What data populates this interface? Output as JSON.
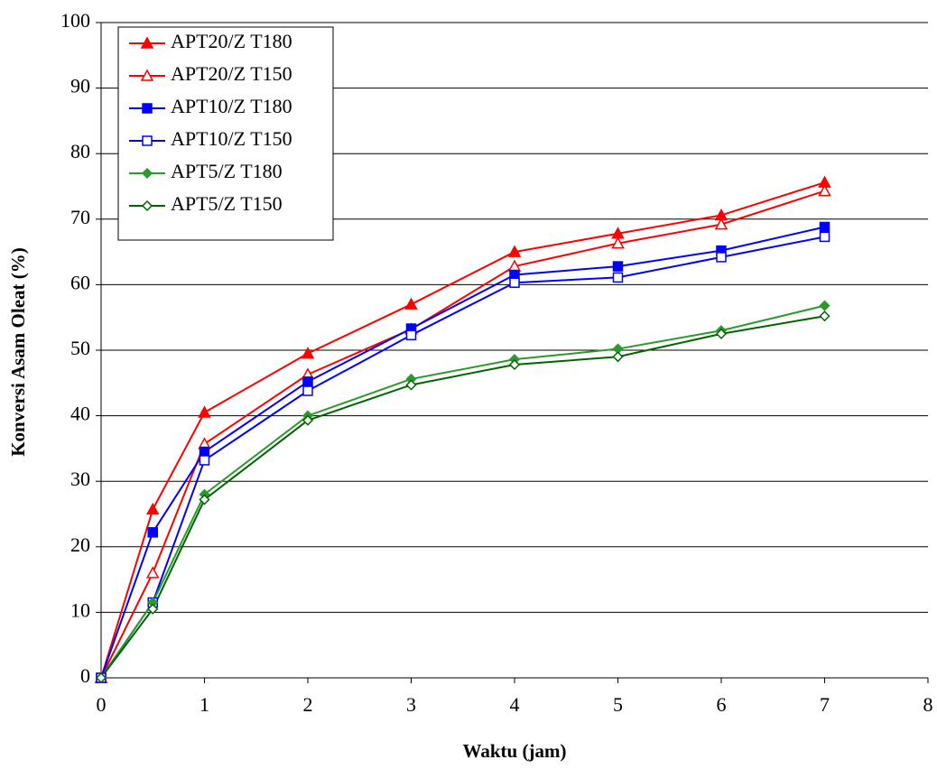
{
  "chart_data": {
    "type": "line",
    "x_label": "Waktu (jam)",
    "y_label": "Konversi Asam Oleat (%)",
    "x": [
      0,
      0.5,
      1,
      2,
      3,
      4,
      5,
      6,
      7
    ],
    "xlim": [
      0,
      8
    ],
    "xticks": [
      0,
      1,
      2,
      3,
      4,
      5,
      6,
      7,
      8
    ],
    "ylim": [
      0,
      100
    ],
    "yticks": [
      0,
      10,
      20,
      30,
      40,
      50,
      60,
      70,
      80,
      90,
      100
    ],
    "grid": true,
    "legend": "top-left",
    "series": [
      {
        "name": "APT20/Z T180",
        "color": "#ff0000",
        "marker": "triangle",
        "filled": true,
        "values": [
          0,
          25.7,
          40.5,
          49.5,
          57,
          65,
          67.8,
          70.6,
          75.6
        ]
      },
      {
        "name": "APT20/Z T150",
        "color": "#ff0000",
        "marker": "triangle",
        "filled": false,
        "values": [
          0,
          16,
          35.7,
          46.3,
          53.2,
          62.8,
          66.3,
          69.2,
          74.3
        ]
      },
      {
        "name": "APT10/Z T180",
        "color": "#0000ff",
        "marker": "square",
        "filled": true,
        "values": [
          0,
          22.2,
          34.5,
          45.2,
          53.3,
          61.5,
          62.8,
          65.2,
          68.8
        ]
      },
      {
        "name": "APT10/Z T150",
        "color": "#0000ff",
        "marker": "square",
        "filled": false,
        "values": [
          0,
          11.5,
          33.2,
          43.8,
          52.3,
          60.3,
          61.1,
          64.2,
          67.3
        ]
      },
      {
        "name": "APT5/Z T180",
        "color": "#2a9a2a",
        "marker": "diamond",
        "filled": true,
        "values": [
          0,
          11.5,
          28,
          40,
          45.6,
          48.6,
          50.2,
          53,
          56.8
        ]
      },
      {
        "name": "APT5/Z T150",
        "color": "#006400",
        "marker": "diamond",
        "filled": false,
        "values": [
          0,
          10.5,
          27.2,
          39.3,
          44.7,
          47.8,
          49,
          52.5,
          55.2
        ]
      }
    ]
  }
}
